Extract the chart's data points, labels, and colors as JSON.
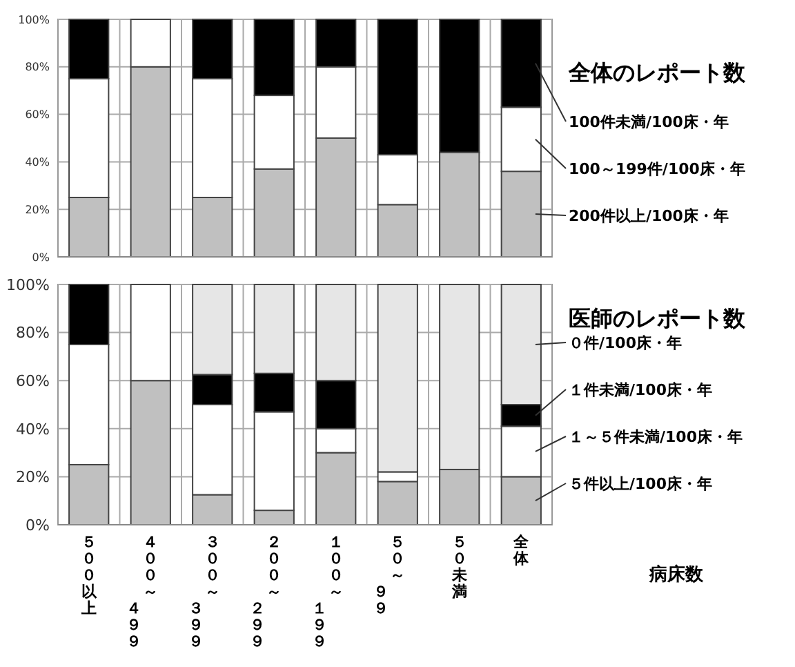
{
  "chart_data": [
    {
      "type": "bar",
      "stacked": true,
      "legend_title": "全体のレポート数",
      "legend": "right",
      "grid": true,
      "tick_labels": "y",
      "categories": [
        "５００以上",
        "４００～４９９",
        "３００～３９９",
        "２００～２９９",
        "１００～１９９",
        "５０～９９",
        "５０未満",
        "全体"
      ],
      "ylim": [
        0,
        100
      ],
      "yticks": [
        {
          "value": 0,
          "label": "0%"
        },
        {
          "value": 20,
          "label": "20%"
        },
        {
          "value": 40,
          "label": "40%"
        },
        {
          "value": 60,
          "label": "60%"
        },
        {
          "value": 80,
          "label": "80%"
        },
        {
          "value": 100,
          "label": "100%"
        }
      ],
      "series": [
        {
          "name": "200件以上/100床・年",
          "color": "#c0c0c0",
          "values": [
            25,
            80,
            25,
            37,
            50,
            22,
            44,
            36
          ]
        },
        {
          "name": "100～199件/100床・年",
          "color": "#ffffff",
          "values": [
            50,
            20,
            50,
            31,
            30,
            21,
            0,
            27
          ]
        },
        {
          "name": "100件未満/100床・年",
          "color": "#000000",
          "values": [
            25,
            0,
            25,
            32,
            20,
            57,
            56,
            37
          ]
        }
      ]
    },
    {
      "type": "bar",
      "stacked": true,
      "legend_title": "医師のレポート数",
      "legend": "right",
      "grid": true,
      "xlabel": "病床数",
      "categories": [
        "５００以上",
        "４００～４９９",
        "３００～３９９",
        "２００～２９９",
        "１００～１９９",
        "５０～９９",
        "５０未満",
        "全体"
      ],
      "ylim": [
        0,
        100
      ],
      "yticks": [
        {
          "value": 0,
          "label": "0%"
        },
        {
          "value": 20,
          "label": "20%"
        },
        {
          "value": 40,
          "label": "40%"
        },
        {
          "value": 60,
          "label": "60%"
        },
        {
          "value": 80,
          "label": "80%"
        },
        {
          "value": 100,
          "label": "100%"
        }
      ],
      "series": [
        {
          "name": "５件以上/100床・年",
          "color": "#c0c0c0",
          "values": [
            25,
            60,
            12.5,
            6,
            30,
            18,
            23,
            20
          ]
        },
        {
          "name": "１～５件未満/100床・年",
          "color": "#ffffff",
          "values": [
            50,
            40,
            37.5,
            41,
            10,
            4,
            0,
            21
          ]
        },
        {
          "name": "１件未満/100床・年",
          "color": "#000000",
          "values": [
            25,
            0,
            12.5,
            16,
            20,
            0,
            0,
            9
          ]
        },
        {
          "name": "０件/100床・年",
          "color": "#e6e6e6",
          "values": [
            0,
            0,
            37.5,
            37,
            40,
            78,
            77,
            50
          ]
        }
      ]
    }
  ]
}
